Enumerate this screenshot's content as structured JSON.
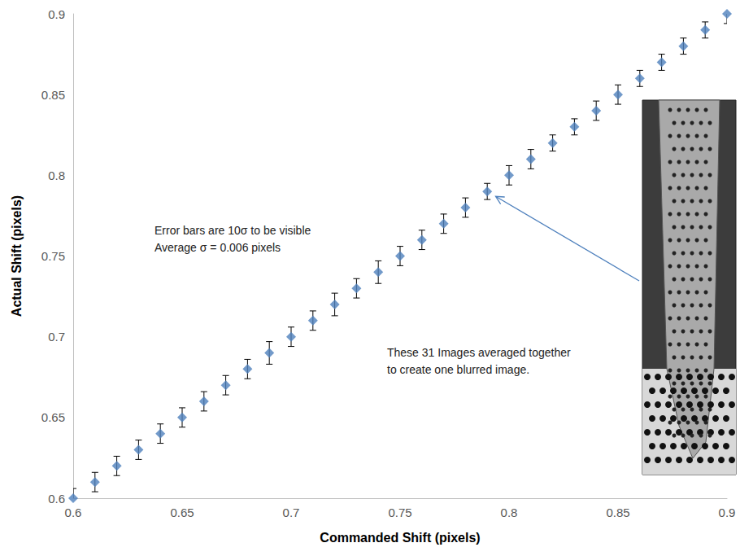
{
  "chart_data": {
    "type": "scatter",
    "xlabel": "Commanded Shift (pixels)",
    "ylabel": "Actual Shift (pixels)",
    "x": [
      0.6,
      0.61,
      0.62,
      0.63,
      0.64,
      0.65,
      0.66,
      0.67,
      0.68,
      0.69,
      0.7,
      0.71,
      0.72,
      0.73,
      0.74,
      0.75,
      0.76,
      0.77,
      0.78,
      0.79,
      0.8,
      0.81,
      0.82,
      0.83,
      0.84,
      0.85,
      0.86,
      0.87,
      0.88,
      0.89,
      0.9
    ],
    "values": [
      0.6,
      0.61,
      0.62,
      0.63,
      0.64,
      0.65,
      0.66,
      0.67,
      0.68,
      0.69,
      0.7,
      0.71,
      0.72,
      0.73,
      0.74,
      0.75,
      0.76,
      0.77,
      0.78,
      0.79,
      0.8,
      0.81,
      0.82,
      0.83,
      0.84,
      0.85,
      0.86,
      0.87,
      0.88,
      0.89,
      0.9
    ],
    "errors": [
      0.006,
      0.006,
      0.006,
      0.006,
      0.006,
      0.006,
      0.006,
      0.006,
      0.006,
      0.007,
      0.006,
      0.006,
      0.007,
      0.006,
      0.007,
      0.006,
      0.006,
      0.006,
      0.006,
      0.005,
      0.006,
      0.006,
      0.005,
      0.005,
      0.006,
      0.006,
      0.005,
      0.005,
      0.005,
      0.005,
      0.006
    ],
    "color": "#4f81bd",
    "marker": "diamond",
    "xlim": [
      0.6,
      0.9
    ],
    "xticks": [
      0.6,
      0.65,
      0.7,
      0.75,
      0.8,
      0.85,
      0.9
    ],
    "ylim": [
      0.6,
      0.9
    ],
    "yticks": [
      0.6,
      0.65,
      0.7,
      0.75,
      0.8,
      0.85,
      0.9
    ],
    "grid": false,
    "annotations": [
      {
        "lines": [
          "Error bars are 10σ to be visible",
          "Average σ = 0.006 pixels"
        ]
      },
      {
        "lines": [
          "These 31 Images averaged together",
          "to create one blurred image."
        ],
        "arrow_to": {
          "x": 0.79,
          "y": 0.79
        }
      }
    ]
  }
}
